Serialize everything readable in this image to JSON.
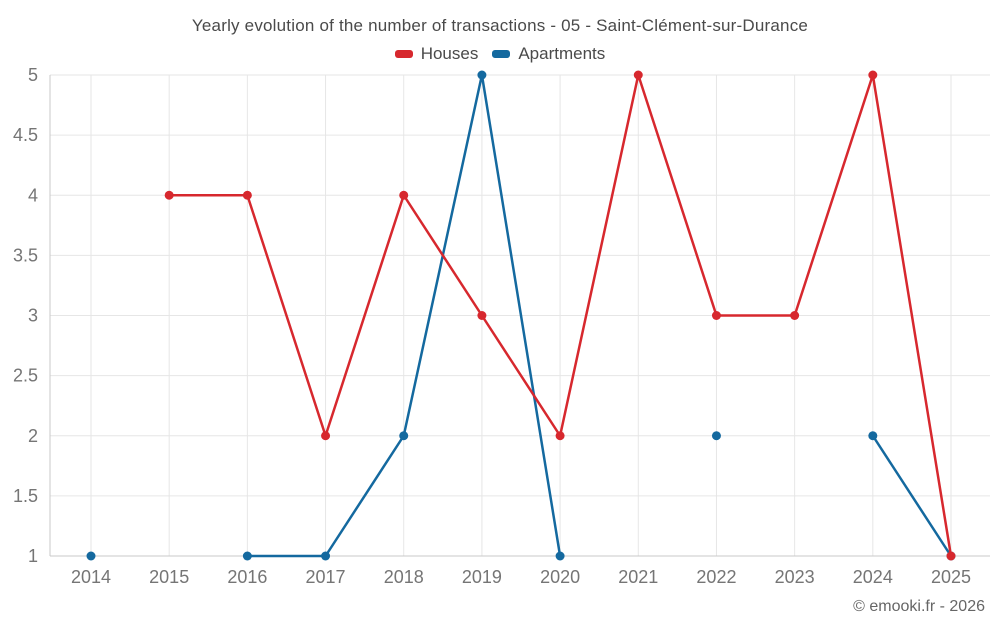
{
  "chart_data": {
    "type": "line",
    "title": "Yearly evolution of the number of transactions - 05 - Saint-Clément-sur-Durance",
    "categories": [
      "2014",
      "2015",
      "2016",
      "2017",
      "2018",
      "2019",
      "2020",
      "2021",
      "2022",
      "2023",
      "2024",
      "2025"
    ],
    "series": [
      {
        "name": "Houses",
        "color": "#d7282e",
        "values": [
          null,
          4,
          4,
          2,
          4,
          3,
          2,
          5,
          3,
          3,
          5,
          1
        ]
      },
      {
        "name": "Apartments",
        "color": "#14699f",
        "values": [
          1,
          null,
          1,
          1,
          2,
          5,
          1,
          null,
          2,
          null,
          2,
          1
        ]
      }
    ],
    "xlabel": "",
    "ylabel": "",
    "ylim": [
      1,
      5
    ],
    "yticks": [
      1,
      1.5,
      2,
      2.5,
      3,
      3.5,
      4,
      4.5,
      5
    ],
    "grid": true,
    "legend_position": "top",
    "credit": "© emooki.fr - 2026",
    "colors": {
      "grid": "#e6e6e6",
      "axis": "#c9c9c9",
      "title_text": "#4a4a4a",
      "tick_text": "#757575",
      "credit_text": "#666666"
    }
  }
}
